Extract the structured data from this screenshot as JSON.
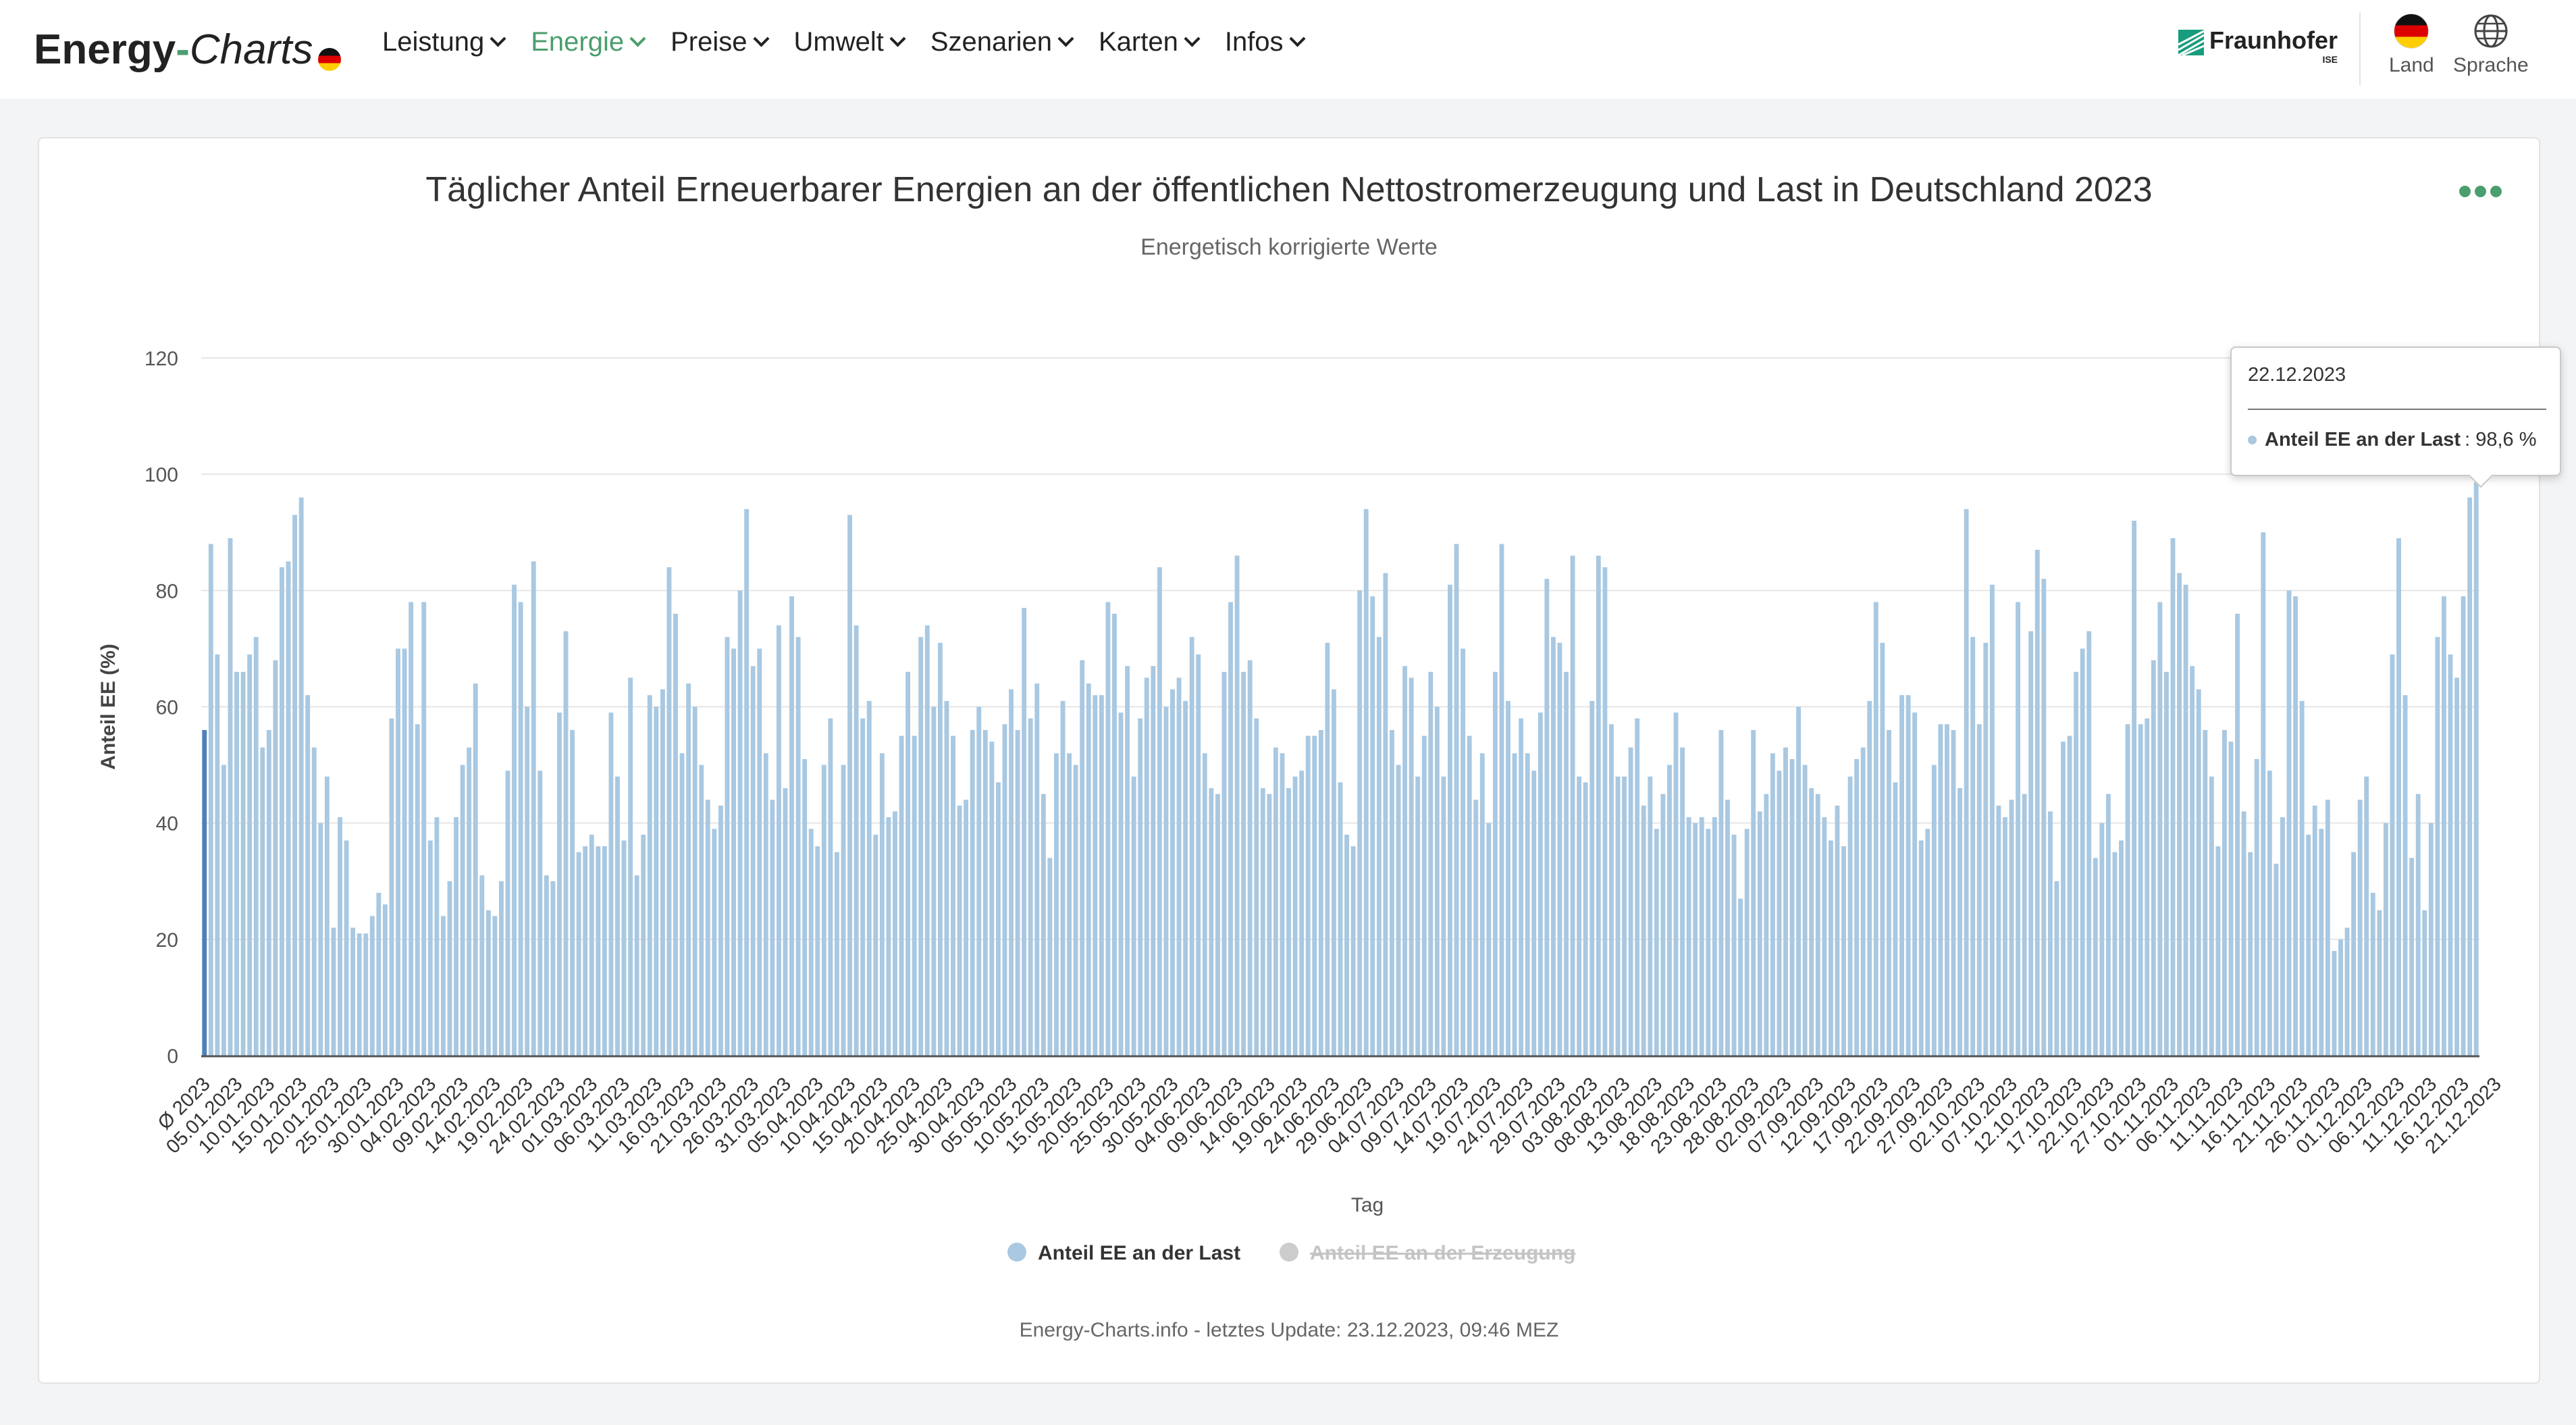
{
  "header": {
    "brand_part1": "Energy",
    "brand_dash": "-",
    "brand_part2": "Charts",
    "nav": [
      {
        "label": "Leistung",
        "active": false
      },
      {
        "label": "Energie",
        "active": true
      },
      {
        "label": "Preise",
        "active": false
      },
      {
        "label": "Umwelt",
        "active": false
      },
      {
        "label": "Szenarien",
        "active": false
      },
      {
        "label": "Karten",
        "active": false
      },
      {
        "label": "Infos",
        "active": false
      }
    ],
    "partner_name": "Fraunhofer",
    "partner_sub": "ISE",
    "country_label": "Land",
    "language_label": "Sprache"
  },
  "colors": {
    "accent": "#4b9e6e",
    "series_load": "#a9c8e1",
    "series_load_highlight": "#4f81b6",
    "series_generation_disabled": "#cccccc"
  },
  "tooltip": {
    "date": "22.12.2023",
    "series": "Anteil EE an der Last",
    "value": ": 98,6 %"
  },
  "footer": "Energy-Charts.info - letztes Update: 23.12.2023, 09:46 MEZ",
  "chart_data": {
    "type": "bar",
    "title": "Täglicher Anteil Erneuerbarer Energien an der öffentlichen Nettostromerzeugung und Last in Deutschland 2023",
    "subtitle": "Energetisch korrigierte Werte",
    "xlabel": "Tag",
    "ylabel": "Anteil EE (%)",
    "ylim": [
      0,
      120
    ],
    "yticks": [
      0,
      20,
      40,
      60,
      80,
      100,
      120
    ],
    "grid": true,
    "legend_position": "bottom",
    "legend": [
      {
        "name": "Anteil EE an der Last",
        "enabled": true
      },
      {
        "name": "Anteil EE an der Erzeugung",
        "enabled": false
      }
    ],
    "x_tick_labels": [
      "Ø 2023",
      "05.01.2023",
      "10.01.2023",
      "15.01.2023",
      "20.01.2023",
      "25.01.2023",
      "30.01.2023",
      "04.02.2023",
      "09.02.2023",
      "14.02.2023",
      "19.02.2023",
      "24.02.2023",
      "01.03.2023",
      "06.03.2023",
      "11.03.2023",
      "16.03.2023",
      "21.03.2023",
      "26.03.2023",
      "31.03.2023",
      "05.04.2023",
      "10.04.2023",
      "15.04.2023",
      "20.04.2023",
      "25.04.2023",
      "30.04.2023",
      "05.05.2023",
      "10.05.2023",
      "15.05.2023",
      "20.05.2023",
      "25.05.2023",
      "30.05.2023",
      "04.06.2023",
      "09.06.2023",
      "14.06.2023",
      "19.06.2023",
      "24.06.2023",
      "29.06.2023",
      "04.07.2023",
      "09.07.2023",
      "14.07.2023",
      "19.07.2023",
      "24.07.2023",
      "29.07.2023",
      "03.08.2023",
      "08.08.2023",
      "13.08.2023",
      "18.08.2023",
      "23.08.2023",
      "28.08.2023",
      "02.09.2023",
      "07.09.2023",
      "12.09.2023",
      "17.09.2023",
      "22.09.2023",
      "27.09.2023",
      "02.10.2023",
      "07.10.2023",
      "12.10.2023",
      "17.10.2023",
      "22.10.2023",
      "27.10.2023",
      "01.11.2023",
      "06.11.2023",
      "11.11.2023",
      "16.11.2023",
      "21.11.2023",
      "26.11.2023",
      "01.12.2023",
      "06.12.2023",
      "11.12.2023",
      "16.12.2023",
      "21.12.2023"
    ],
    "series": [
      {
        "name": "Anteil EE an der Last",
        "average": 56,
        "values": [
          88,
          69,
          50,
          89,
          66,
          66,
          69,
          72,
          53,
          56,
          68,
          84,
          85,
          93,
          96,
          62,
          53,
          40,
          48,
          22,
          41,
          37,
          22,
          21,
          21,
          24,
          28,
          26,
          58,
          70,
          70,
          78,
          57,
          78,
          37,
          41,
          24,
          30,
          41,
          50,
          53,
          64,
          31,
          25,
          24,
          30,
          49,
          81,
          78,
          60,
          85,
          49,
          31,
          30,
          59,
          73,
          56,
          35,
          36,
          38,
          36,
          36,
          59,
          48,
          37,
          65,
          31,
          38,
          62,
          60,
          63,
          84,
          76,
          52,
          64,
          60,
          50,
          44,
          39,
          43,
          72,
          70,
          80,
          94,
          67,
          70,
          52,
          44,
          74,
          46,
          79,
          72,
          51,
          39,
          36,
          50,
          58,
          35,
          50,
          93,
          74,
          58,
          61,
          38,
          52,
          41,
          42,
          55,
          66,
          55,
          72,
          74,
          60,
          71,
          61,
          55,
          43,
          44,
          56,
          60,
          56,
          54,
          47,
          57,
          63,
          56,
          77,
          58,
          64,
          45,
          34,
          52,
          61,
          52,
          50,
          68,
          64,
          62,
          62,
          78,
          76,
          59,
          67,
          48,
          58,
          65,
          67,
          84,
          60,
          63,
          65,
          61,
          72,
          69,
          52,
          46,
          45,
          66,
          78,
          86,
          66,
          68,
          58,
          46,
          45,
          53,
          52,
          46,
          48,
          49,
          55,
          55,
          56,
          71,
          63,
          47,
          38,
          36,
          80,
          94,
          79,
          72,
          83,
          56,
          50,
          67,
          65,
          48,
          55,
          66,
          60,
          48,
          81,
          88,
          70,
          55,
          44,
          52,
          40,
          66,
          88,
          61,
          52,
          58,
          52,
          49,
          59,
          82,
          72,
          71,
          66,
          86,
          48,
          47,
          61,
          86,
          84,
          57,
          48,
          48,
          53,
          58,
          43,
          48,
          39,
          45,
          50,
          59,
          53,
          41,
          40,
          41,
          39,
          41,
          56,
          44,
          38,
          27,
          39,
          56,
          42,
          45,
          52,
          49,
          53,
          51,
          60,
          50,
          46,
          45,
          41,
          37,
          43,
          36,
          48,
          51,
          53,
          61,
          78,
          71,
          56,
          47,
          62,
          62,
          59,
          37,
          39,
          50,
          57,
          57,
          56,
          46,
          94,
          72,
          57,
          71,
          81,
          43,
          41,
          44,
          78,
          45,
          73,
          87,
          82,
          42,
          30,
          54,
          55,
          66,
          70,
          73,
          34,
          40,
          45,
          35,
          37,
          57,
          92,
          57,
          58,
          68,
          78,
          66,
          89,
          83,
          81,
          67,
          63,
          56,
          48,
          36,
          56,
          54,
          76,
          42,
          35,
          51,
          90,
          49,
          33,
          41,
          80,
          79,
          61,
          38,
          43,
          39,
          44,
          18,
          20,
          22,
          35,
          44,
          48,
          28,
          25,
          40,
          69,
          89,
          62,
          34,
          45,
          25,
          40,
          72,
          79,
          69,
          65,
          79,
          96,
          98.6
        ]
      },
      {
        "name": "Anteil EE an der Erzeugung",
        "hidden": true
      }
    ]
  }
}
